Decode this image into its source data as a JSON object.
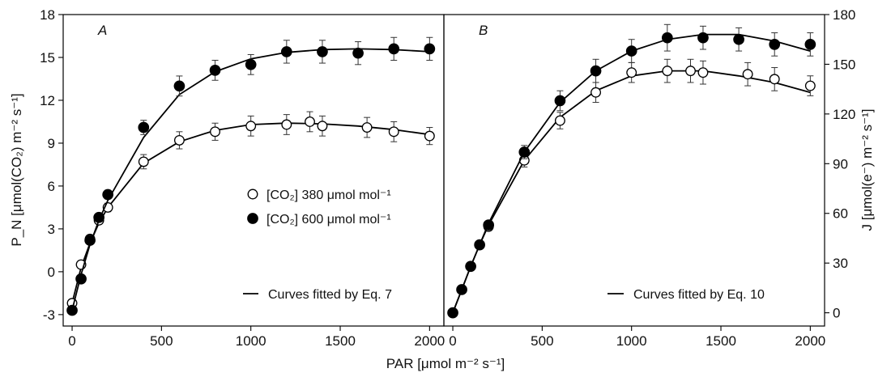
{
  "chart_data": [
    {
      "panel": "A",
      "type": "scatter",
      "xlabel": "PAR [μmol m⁻² s⁻¹]",
      "ylabel": "P_N [μmol(CO₂) m⁻² s⁻¹]",
      "xlim": [
        -50,
        2080
      ],
      "ylim": [
        -3.8,
        18
      ],
      "xticks": [
        0,
        500,
        1000,
        1500,
        2000
      ],
      "yticks": [
        -3,
        0,
        3,
        6,
        9,
        12,
        15,
        18
      ],
      "legend": [
        {
          "marker": "open-circle",
          "label": "[CO₂] 380 μmol mol⁻¹"
        },
        {
          "marker": "filled-circle",
          "label": "[CO₂] 600 μmol mol⁻¹"
        },
        {
          "marker": "line",
          "label": "Curves fitted by Eq. 7"
        }
      ],
      "series": [
        {
          "marker": "open",
          "x": [
            0,
            50,
            100,
            150,
            200,
            400,
            600,
            800,
            1000,
            1200,
            1330,
            1400,
            1650,
            1800,
            2000
          ],
          "y": [
            -2.2,
            0.5,
            2.3,
            3.6,
            4.5,
            7.7,
            9.2,
            9.8,
            10.2,
            10.3,
            10.5,
            10.2,
            10.1,
            9.8,
            9.5
          ],
          "err": [
            0,
            0,
            0,
            0,
            0.3,
            0.5,
            0.6,
            0.6,
            0.7,
            0.7,
            0.7,
            0.7,
            0.7,
            0.7,
            0.6
          ],
          "fit": [
            [
              0,
              -2.2
            ],
            [
              50,
              0.3
            ],
            [
              100,
              2.0
            ],
            [
              150,
              3.4
            ],
            [
              200,
              4.5
            ],
            [
              400,
              7.6
            ],
            [
              600,
              9.1
            ],
            [
              800,
              9.9
            ],
            [
              1000,
              10.3
            ],
            [
              1200,
              10.4
            ],
            [
              1400,
              10.35
            ],
            [
              1600,
              10.2
            ],
            [
              1800,
              9.95
            ],
            [
              2000,
              9.6
            ]
          ]
        },
        {
          "marker": "filled",
          "x": [
            0,
            50,
            100,
            150,
            200,
            400,
            600,
            800,
            1000,
            1200,
            1400,
            1600,
            1800,
            2000
          ],
          "y": [
            -2.7,
            -0.5,
            2.2,
            3.8,
            5.4,
            10.1,
            13.0,
            14.1,
            14.5,
            15.4,
            15.4,
            15.3,
            15.6,
            15.6
          ],
          "err": [
            0,
            0,
            0,
            0,
            0.3,
            0.5,
            0.7,
            0.7,
            0.7,
            0.8,
            0.8,
            0.8,
            0.8,
            0.8
          ],
          "fit": [
            [
              0,
              -2.7
            ],
            [
              50,
              -0.2
            ],
            [
              100,
              1.9
            ],
            [
              150,
              3.6
            ],
            [
              200,
              5.0
            ],
            [
              400,
              9.4
            ],
            [
              600,
              12.4
            ],
            [
              800,
              14.0
            ],
            [
              1000,
              14.9
            ],
            [
              1200,
              15.35
            ],
            [
              1400,
              15.55
            ],
            [
              1600,
              15.6
            ],
            [
              1800,
              15.55
            ],
            [
              2000,
              15.4
            ]
          ]
        }
      ]
    },
    {
      "panel": "B",
      "type": "scatter",
      "ylabel": "J [μmol(e⁻) m⁻² s⁻¹]",
      "xlim": [
        -50,
        2080
      ],
      "ylim": [
        -8,
        180
      ],
      "xticks": [
        0,
        500,
        1000,
        1500,
        2000
      ],
      "yticks": [
        0,
        30,
        60,
        90,
        120,
        150,
        180
      ],
      "legend": [
        {
          "marker": "line",
          "label": "Curves fitted by Eq. 10"
        }
      ],
      "series": [
        {
          "marker": "open",
          "x": [
            0,
            50,
            100,
            150,
            200,
            400,
            600,
            800,
            1000,
            1200,
            1330,
            1400,
            1650,
            1800,
            2000
          ],
          "y": [
            0,
            14,
            28,
            41,
            52,
            92,
            116,
            133,
            145,
            146,
            146,
            145,
            144,
            141,
            137
          ],
          "err": [
            0,
            0,
            0,
            0,
            2,
            4,
            5,
            6,
            6,
            7,
            7,
            7,
            7,
            7,
            6
          ],
          "fit": [
            [
              0,
              0
            ],
            [
              50,
              14
            ],
            [
              100,
              28
            ],
            [
              150,
              41
            ],
            [
              200,
              53
            ],
            [
              400,
              92
            ],
            [
              600,
              118
            ],
            [
              800,
              134
            ],
            [
              1000,
              143
            ],
            [
              1200,
              146
            ],
            [
              1400,
              146
            ],
            [
              1600,
              143
            ],
            [
              1800,
              139
            ],
            [
              2000,
              133
            ]
          ]
        },
        {
          "marker": "filled",
          "x": [
            0,
            50,
            100,
            150,
            200,
            400,
            600,
            800,
            1000,
            1200,
            1400,
            1600,
            1800,
            2000
          ],
          "y": [
            0,
            14,
            28,
            41,
            53,
            97,
            128,
            146,
            158,
            166,
            166,
            165,
            162,
            162
          ],
          "err": [
            0,
            0,
            0,
            0,
            2,
            4,
            6,
            7,
            7,
            8,
            7,
            7,
            7,
            7
          ],
          "fit": [
            [
              0,
              0
            ],
            [
              50,
              14
            ],
            [
              100,
              28
            ],
            [
              150,
              41
            ],
            [
              200,
              54
            ],
            [
              400,
              97
            ],
            [
              600,
              127
            ],
            [
              800,
              146
            ],
            [
              1000,
              158
            ],
            [
              1200,
              165
            ],
            [
              1400,
              168
            ],
            [
              1600,
              168
            ],
            [
              1800,
              164
            ],
            [
              2000,
              158
            ]
          ]
        }
      ]
    }
  ]
}
